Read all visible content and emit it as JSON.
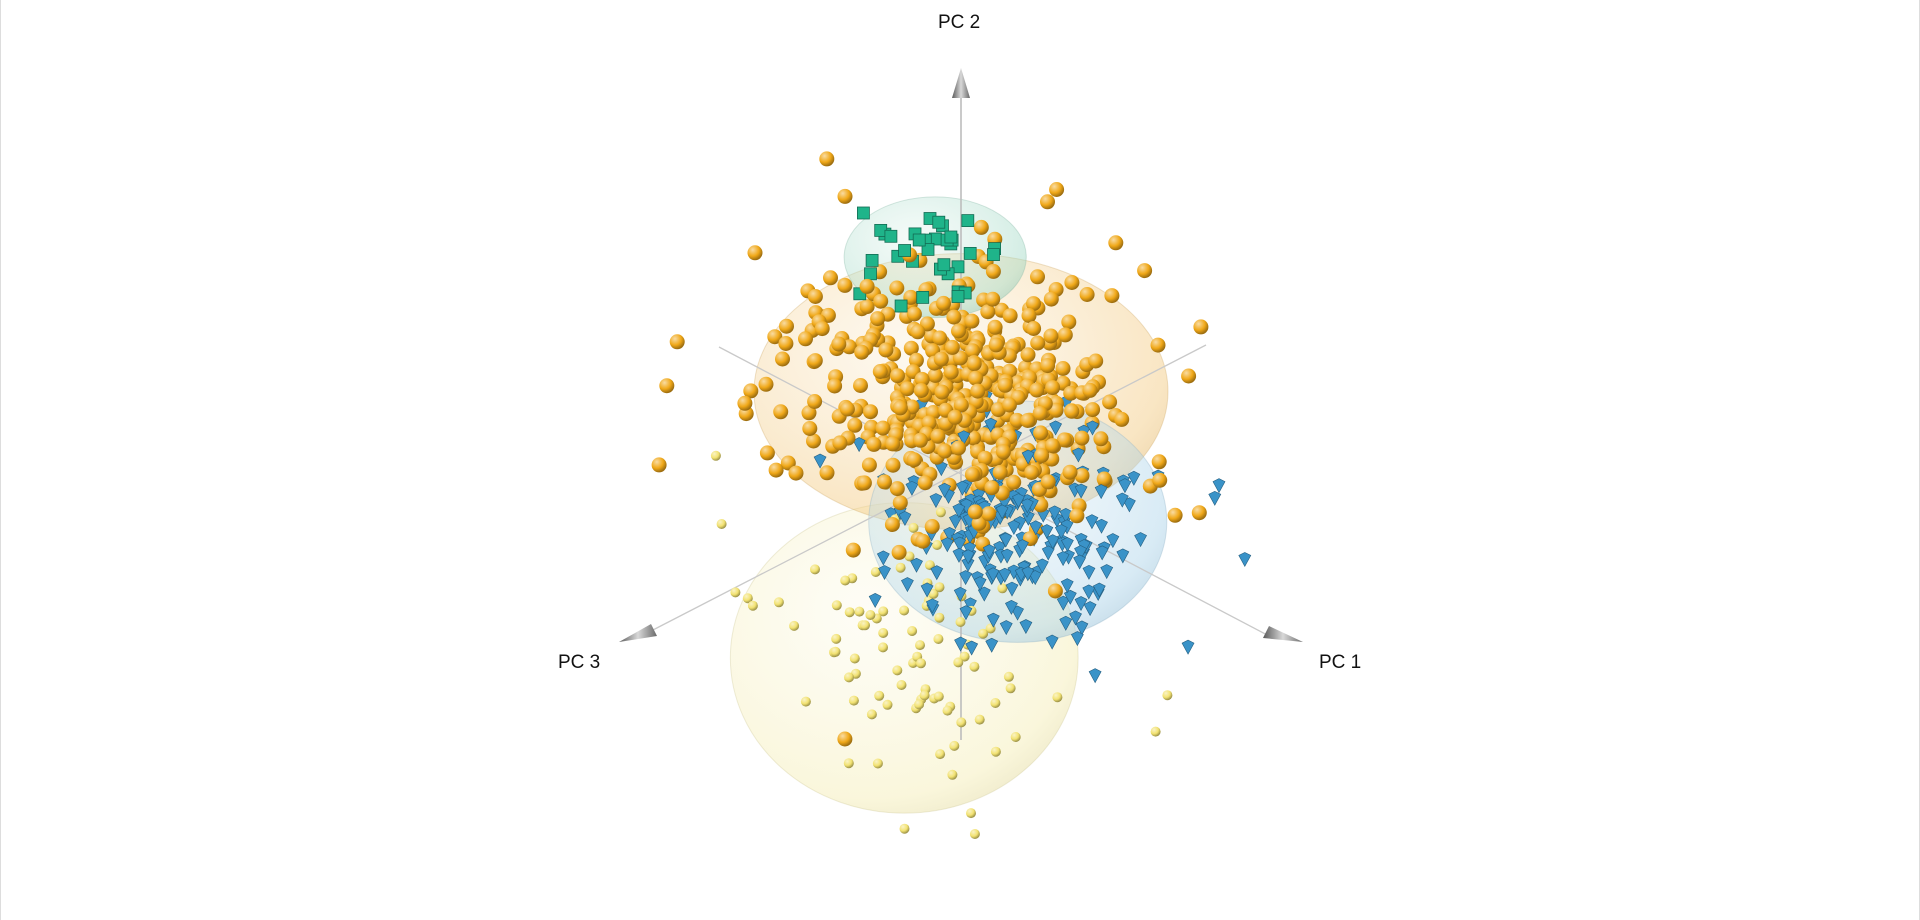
{
  "chart_data": {
    "type": "scatter",
    "subtype": "3d-pca-scatter-with-confidence-ellipsoids",
    "axes": {
      "x": "PC 1",
      "y": "PC 2",
      "z": "PC 3"
    },
    "grid": false,
    "legend": "none",
    "series": [
      {
        "marker": "sphere",
        "color": "#f0a818",
        "ellipsoid_color": "#f2c77a",
        "center": [
          -0.05,
          0.28,
          -0.05
        ],
        "spread": [
          0.5,
          0.32,
          0.4
        ],
        "count": 460,
        "outliers": [
          [
            -0.42,
            0.95,
            0.1
          ],
          [
            0.4,
            0.92,
            -0.2
          ],
          [
            0.68,
            0.75,
            -0.25
          ],
          [
            0.93,
            0.41,
            0.1
          ],
          [
            -0.62,
            0.05,
            0.55
          ],
          [
            -0.7,
            0.35,
            0.4
          ],
          [
            0.55,
            0.62,
            0.05
          ],
          [
            0.82,
            0.45,
            0.05
          ],
          [
            -0.35,
            -0.95,
            0.1
          ]
        ]
      },
      {
        "marker": "diamond",
        "color": "#3a93c8",
        "ellipsoid_color": "#a9d2e9",
        "center": [
          0.22,
          0.0,
          0.0
        ],
        "spread": [
          0.36,
          0.28,
          0.3
        ],
        "count": 210,
        "outliers": [
          [
            1.1,
            0.3,
            0.0
          ],
          [
            0.95,
            0.45,
            -0.05
          ],
          [
            0.93,
            -0.05,
            0.05
          ]
        ]
      },
      {
        "marker": "cube",
        "color": "#1fb48a",
        "ellipsoid_color": "#9fd8c4",
        "center": [
          -0.15,
          0.68,
          -0.05
        ],
        "spread": [
          0.22,
          0.14,
          0.14
        ],
        "count": 35,
        "outliers": []
      },
      {
        "marker": "small-sphere",
        "color": "#f2e271",
        "ellipsoid_color": "#f4ecb0",
        "center": [
          -0.1,
          -0.55,
          0.12
        ],
        "spread": [
          0.42,
          0.36,
          0.32
        ],
        "count": 90,
        "outliers": [
          [
            -0.75,
            -0.15,
            0.2
          ],
          [
            0.8,
            -0.3,
            0.0
          ]
        ]
      }
    ]
  }
}
